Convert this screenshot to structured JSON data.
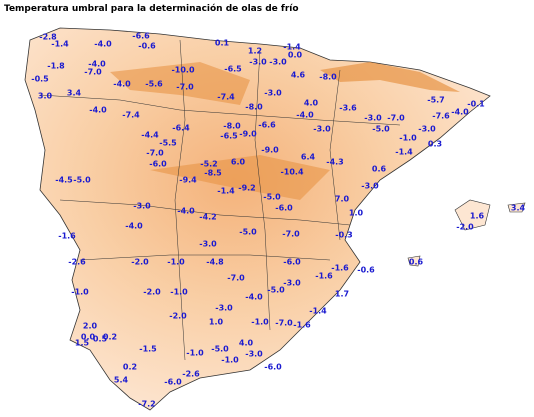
{
  "title": "Temperatura umbral para la determinación de olas de frío",
  "labels": [
    "-2.8",
    "-1.4",
    "-4.0",
    "-6.6",
    "-0.6",
    "0.1",
    "1.2",
    "-1.4",
    "0.0",
    "-3.0",
    "-3.0",
    "-1.8",
    "-4.0",
    "-7.0",
    "-10.0",
    "-6.5",
    "-0.5",
    "-4.0",
    "-5.6",
    "-7.0",
    "4.6",
    "-8.0",
    "3.4",
    "3.0",
    "-3.0",
    "-7.4",
    "-8.0",
    "4.0",
    "-3.6",
    "-5.7",
    "-0.1",
    "-4.0",
    "-7.4",
    "-4.0",
    "-3.0",
    "-7.0",
    "-4.0",
    "-7.6",
    "-6.6",
    "-8.0",
    "-6.4",
    "-4.4",
    "-6.5",
    "-9.0",
    "-3.0",
    "-5.0",
    "-3.0",
    "-1.0",
    "0.3",
    "-5.5",
    "-7.0",
    "-9.0",
    "6.4",
    "-4.3",
    "-1.4",
    "-6.0",
    "-5.2",
    "6.0",
    "-10.4",
    "0.6",
    "-4.5",
    "-5.0",
    "-9.4",
    "-8.5",
    "-1.4",
    "-9.2",
    "-3.0",
    "-3.0",
    "-4.0",
    "-5.0",
    "-6.0",
    "7.0",
    "1.0",
    "-4.0",
    "-4.2",
    "1.6",
    "3.4",
    "-2.0",
    "-1.6",
    "-3.0",
    "-5.0",
    "-7.0",
    "-0.3",
    "-2.6",
    "-2.0",
    "-1.0",
    "-4.8",
    "-6.0",
    "0.6",
    "-7.0",
    "-3.0",
    "-1.6",
    "-1.6",
    "-0.6",
    "-1.0",
    "-2.0",
    "-1.0",
    "-4.0",
    "-5.0",
    "1.7",
    "-3.0",
    "-2.0",
    "-1.4",
    "2.0",
    "1.0",
    "-1.0",
    "-7.0",
    "-1.6",
    "0.0",
    "0.5",
    "0.2",
    "-1.5",
    "-1.0",
    "-5.0",
    "4.0",
    "-3.0",
    "1.5",
    "-1.0",
    "0.2",
    "-6.0",
    "5.4",
    "-2.6",
    "-6.0",
    "-7.2"
  ]
}
